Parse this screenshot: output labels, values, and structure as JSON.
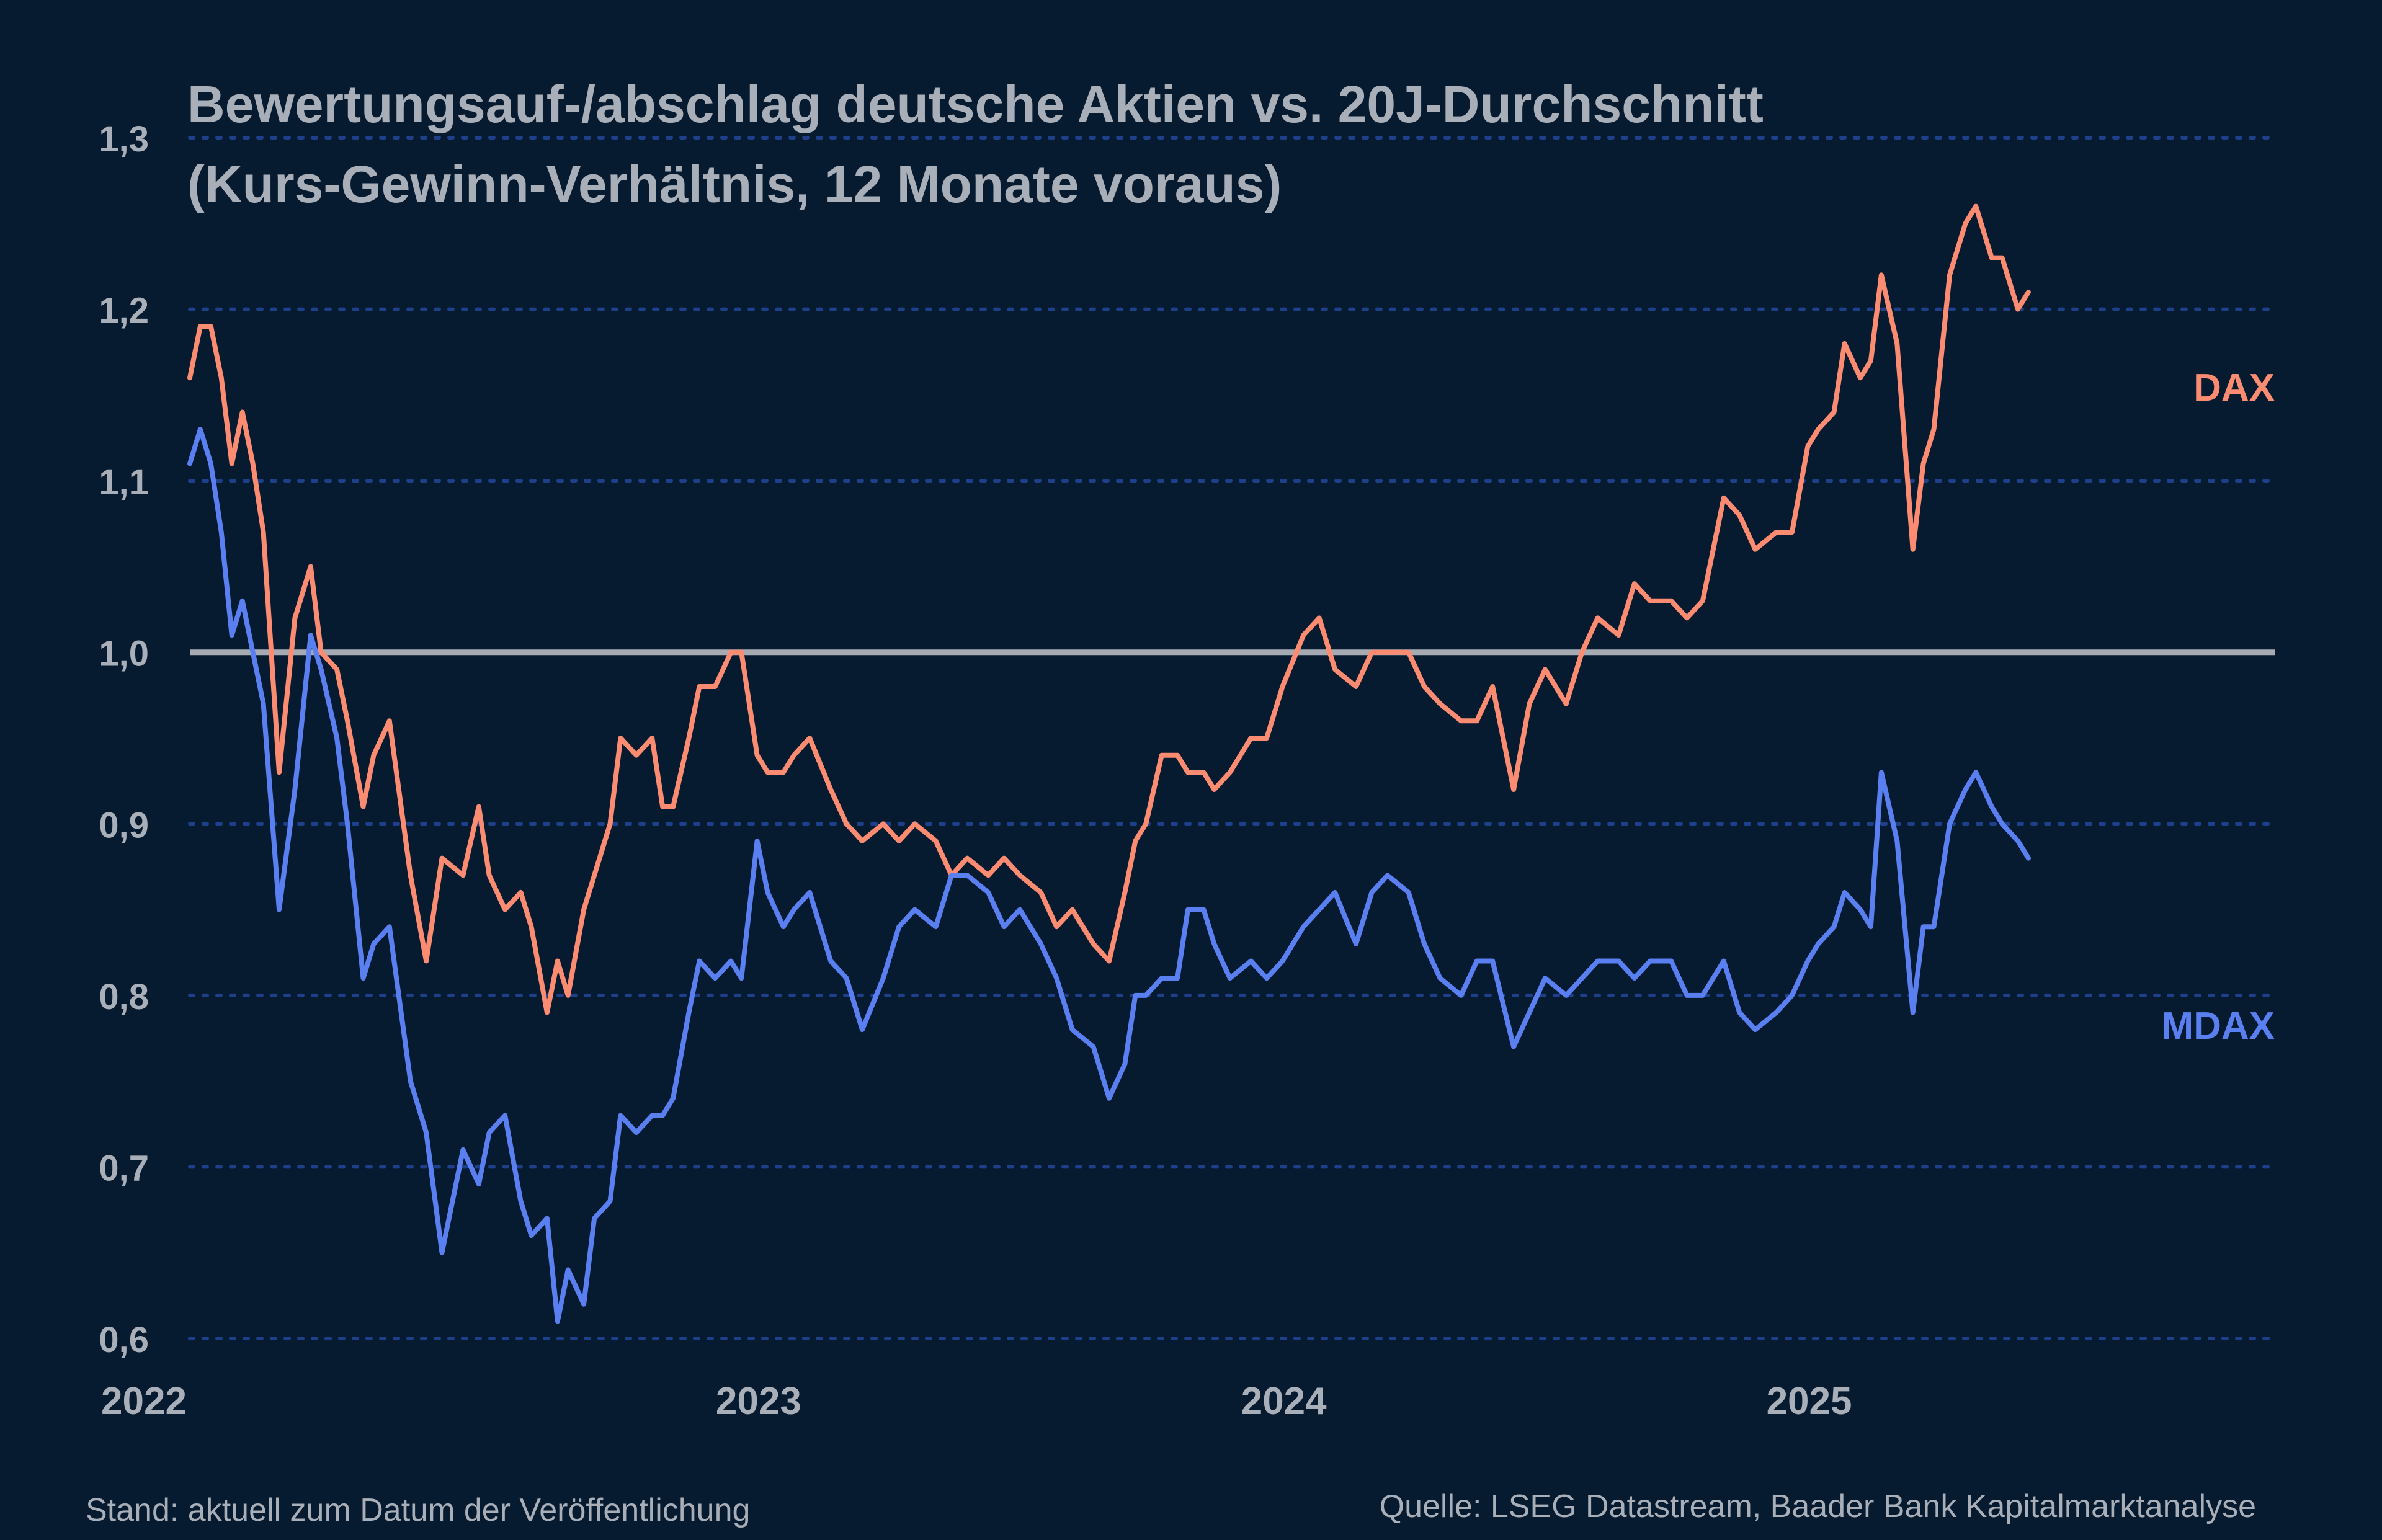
{
  "colors": {
    "background": "#061a30",
    "text": "#a9afb8",
    "grid": "#1e3f8a",
    "baseline": "#a6abb3",
    "dax": "#fb8c72",
    "mdax": "#5a7ff0"
  },
  "footer": {
    "left": "Stand: aktuell zum Datum der Veröffentlichung",
    "right": "Quelle: LSEG Datastream, Baader Bank Kapitalmarktanalyse"
  },
  "chart_data": {
    "type": "line",
    "title": "Bewertungsauf-/abschlag deutsche Aktien vs. 20J-Durchschnitt",
    "subtitle": "(Kurs-Gewinn-Verhältnis, 12 Monate voraus)",
    "xlabel": "",
    "ylabel": "",
    "xlim": [
      2022.0,
      2025.97
    ],
    "ylim": [
      0.6,
      1.3
    ],
    "grid": true,
    "reference_line": 1.0,
    "x_ticks": [
      2022,
      2023,
      2024,
      2025
    ],
    "x_tick_labels": [
      "2022",
      "2023",
      "2024",
      "2025"
    ],
    "y_ticks": [
      0.6,
      0.7,
      0.8,
      0.9,
      1.0,
      1.1,
      1.2,
      1.3
    ],
    "y_tick_labels": [
      "0,6",
      "0,7",
      "0,8",
      "0,9",
      "1,0",
      "1,1",
      "1,2",
      "1,3"
    ],
    "series": [
      {
        "name": "DAX",
        "x": [
          2022.0,
          2022.02,
          2022.04,
          2022.06,
          2022.08,
          2022.1,
          2022.12,
          2022.14,
          2022.17,
          2022.2,
          2022.23,
          2022.25,
          2022.28,
          2022.3,
          2022.33,
          2022.35,
          2022.38,
          2022.42,
          2022.45,
          2022.48,
          2022.52,
          2022.55,
          2022.57,
          2022.6,
          2022.63,
          2022.65,
          2022.68,
          2022.7,
          2022.72,
          2022.75,
          2022.77,
          2022.8,
          2022.82,
          2022.85,
          2022.88,
          2022.9,
          2022.92,
          2022.95,
          2022.97,
          2023.0,
          2023.03,
          2023.05,
          2023.08,
          2023.1,
          2023.13,
          2023.15,
          2023.18,
          2023.22,
          2023.25,
          2023.28,
          2023.32,
          2023.35,
          2023.38,
          2023.42,
          2023.45,
          2023.48,
          2023.52,
          2023.55,
          2023.58,
          2023.62,
          2023.65,
          2023.68,
          2023.72,
          2023.75,
          2023.78,
          2023.8,
          2023.82,
          2023.85,
          2023.88,
          2023.9,
          2023.93,
          2023.95,
          2023.98,
          2024.02,
          2024.05,
          2024.08,
          2024.12,
          2024.15,
          2024.18,
          2024.22,
          2024.25,
          2024.28,
          2024.32,
          2024.35,
          2024.38,
          2024.42,
          2024.45,
          2024.48,
          2024.52,
          2024.55,
          2024.58,
          2024.62,
          2024.65,
          2024.68,
          2024.72,
          2024.75,
          2024.78,
          2024.82,
          2024.85,
          2024.88,
          2024.92,
          2024.95,
          2024.98,
          2025.02,
          2025.05,
          2025.08,
          2025.1,
          2025.13,
          2025.15,
          2025.18,
          2025.2,
          2025.22,
          2025.25,
          2025.28,
          2025.3,
          2025.32,
          2025.35,
          2025.38,
          2025.4,
          2025.43,
          2025.45,
          2025.48,
          2025.5
        ],
        "values": [
          1.16,
          1.19,
          1.19,
          1.16,
          1.11,
          1.14,
          1.11,
          1.07,
          0.93,
          1.02,
          1.05,
          1.0,
          0.99,
          0.96,
          0.91,
          0.94,
          0.96,
          0.87,
          0.82,
          0.88,
          0.87,
          0.91,
          0.87,
          0.85,
          0.86,
          0.84,
          0.79,
          0.82,
          0.8,
          0.85,
          0.87,
          0.9,
          0.95,
          0.94,
          0.95,
          0.91,
          0.91,
          0.95,
          0.98,
          0.98,
          1.0,
          1.0,
          0.94,
          0.93,
          0.93,
          0.94,
          0.95,
          0.92,
          0.9,
          0.89,
          0.9,
          0.89,
          0.9,
          0.89,
          0.87,
          0.88,
          0.87,
          0.88,
          0.87,
          0.86,
          0.84,
          0.85,
          0.83,
          0.82,
          0.86,
          0.89,
          0.9,
          0.94,
          0.94,
          0.93,
          0.93,
          0.92,
          0.93,
          0.95,
          0.95,
          0.98,
          1.01,
          1.02,
          0.99,
          0.98,
          1.0,
          1.0,
          1.0,
          0.98,
          0.97,
          0.96,
          0.96,
          0.98,
          0.92,
          0.97,
          0.99,
          0.97,
          1.0,
          1.02,
          1.01,
          1.04,
          1.03,
          1.03,
          1.02,
          1.03,
          1.09,
          1.08,
          1.06,
          1.07,
          1.07,
          1.12,
          1.13,
          1.14,
          1.18,
          1.16,
          1.17,
          1.22,
          1.18,
          1.06,
          1.11,
          1.13,
          1.22,
          1.25,
          1.26,
          1.23,
          1.23,
          1.2,
          1.21
        ],
        "end_label": "DAX"
      },
      {
        "name": "MDAX",
        "x": [
          2022.0,
          2022.02,
          2022.04,
          2022.06,
          2022.08,
          2022.1,
          2022.12,
          2022.14,
          2022.17,
          2022.2,
          2022.23,
          2022.25,
          2022.28,
          2022.3,
          2022.33,
          2022.35,
          2022.38,
          2022.42,
          2022.45,
          2022.48,
          2022.52,
          2022.55,
          2022.57,
          2022.6,
          2022.63,
          2022.65,
          2022.68,
          2022.7,
          2022.72,
          2022.75,
          2022.77,
          2022.8,
          2022.82,
          2022.85,
          2022.88,
          2022.9,
          2022.92,
          2022.95,
          2022.97,
          2023.0,
          2023.03,
          2023.05,
          2023.08,
          2023.1,
          2023.13,
          2023.15,
          2023.18,
          2023.22,
          2023.25,
          2023.28,
          2023.32,
          2023.35,
          2023.38,
          2023.42,
          2023.45,
          2023.48,
          2023.52,
          2023.55,
          2023.58,
          2023.62,
          2023.65,
          2023.68,
          2023.72,
          2023.75,
          2023.78,
          2023.8,
          2023.82,
          2023.85,
          2023.88,
          2023.9,
          2023.93,
          2023.95,
          2023.98,
          2024.02,
          2024.05,
          2024.08,
          2024.12,
          2024.15,
          2024.18,
          2024.22,
          2024.25,
          2024.28,
          2024.32,
          2024.35,
          2024.38,
          2024.42,
          2024.45,
          2024.48,
          2024.52,
          2024.55,
          2024.58,
          2024.62,
          2024.65,
          2024.68,
          2024.72,
          2024.75,
          2024.78,
          2024.82,
          2024.85,
          2024.88,
          2024.92,
          2024.95,
          2024.98,
          2025.02,
          2025.05,
          2025.08,
          2025.1,
          2025.13,
          2025.15,
          2025.18,
          2025.2,
          2025.22,
          2025.25,
          2025.28,
          2025.3,
          2025.32,
          2025.35,
          2025.38,
          2025.4,
          2025.43,
          2025.45,
          2025.48,
          2025.5
        ],
        "values": [
          1.11,
          1.13,
          1.11,
          1.07,
          1.01,
          1.03,
          1.0,
          0.97,
          0.85,
          0.92,
          1.01,
          0.99,
          0.95,
          0.9,
          0.81,
          0.83,
          0.84,
          0.75,
          0.72,
          0.65,
          0.71,
          0.69,
          0.72,
          0.73,
          0.68,
          0.66,
          0.67,
          0.61,
          0.64,
          0.62,
          0.67,
          0.68,
          0.73,
          0.72,
          0.73,
          0.73,
          0.74,
          0.79,
          0.82,
          0.81,
          0.82,
          0.81,
          0.89,
          0.86,
          0.84,
          0.85,
          0.86,
          0.82,
          0.81,
          0.78,
          0.81,
          0.84,
          0.85,
          0.84,
          0.87,
          0.87,
          0.86,
          0.84,
          0.85,
          0.83,
          0.81,
          0.78,
          0.77,
          0.74,
          0.76,
          0.8,
          0.8,
          0.81,
          0.81,
          0.85,
          0.85,
          0.83,
          0.81,
          0.82,
          0.81,
          0.82,
          0.84,
          0.85,
          0.86,
          0.83,
          0.86,
          0.87,
          0.86,
          0.83,
          0.81,
          0.8,
          0.82,
          0.82,
          0.77,
          0.79,
          0.81,
          0.8,
          0.81,
          0.82,
          0.82,
          0.81,
          0.82,
          0.82,
          0.8,
          0.8,
          0.82,
          0.79,
          0.78,
          0.79,
          0.8,
          0.82,
          0.83,
          0.84,
          0.86,
          0.85,
          0.84,
          0.93,
          0.89,
          0.79,
          0.84,
          0.84,
          0.9,
          0.92,
          0.93,
          0.91,
          0.9,
          0.89,
          0.88
        ],
        "end_label": "MDAX"
      }
    ]
  }
}
